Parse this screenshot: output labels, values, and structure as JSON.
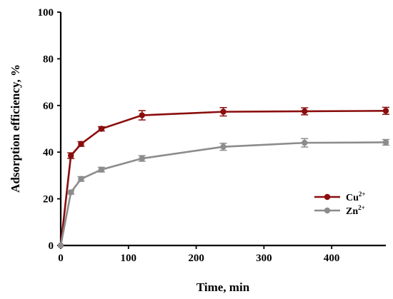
{
  "chart_data": {
    "type": "line",
    "title": "",
    "xlabel": "Time, min",
    "ylabel": "Adsorption efficiency, %",
    "xlim": [
      0,
      480
    ],
    "ylim": [
      0,
      100
    ],
    "xticks": [
      0,
      100,
      200,
      300,
      400
    ],
    "yticks": [
      0,
      20,
      40,
      60,
      80,
      100
    ],
    "grid": false,
    "legend_position": "right",
    "series": [
      {
        "name": "Cu",
        "name_sup": "2+",
        "color": "#8b0d0d",
        "x": [
          0,
          15,
          30,
          60,
          120,
          240,
          360,
          480
        ],
        "y": [
          0,
          38.5,
          43.5,
          50,
          55.8,
          57.3,
          57.5,
          57.7
        ],
        "err": [
          0,
          1.2,
          1.0,
          0.9,
          2.0,
          1.8,
          1.5,
          1.5
        ]
      },
      {
        "name": "Zn",
        "name_sup": "2+",
        "color": "#8c8c8c",
        "x": [
          0,
          15,
          30,
          60,
          120,
          240,
          360,
          480
        ],
        "y": [
          0,
          22.8,
          28.5,
          32.5,
          37.3,
          42.3,
          44,
          44.2
        ],
        "err": [
          0,
          0.8,
          1.0,
          1.0,
          1.2,
          1.5,
          1.8,
          1.2
        ]
      }
    ]
  }
}
